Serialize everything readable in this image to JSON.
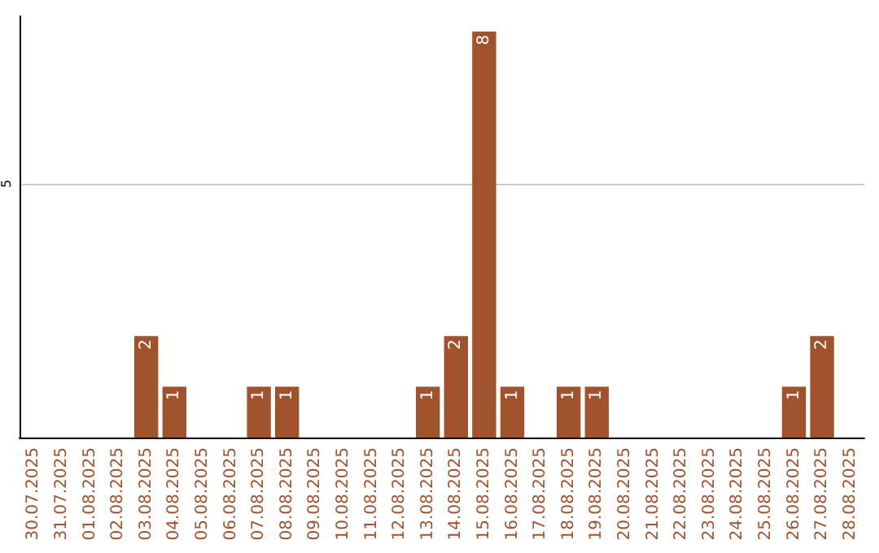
{
  "chart_data": {
    "type": "bar",
    "categories": [
      "30.07.2025",
      "31.07.2025",
      "01.08.2025",
      "02.08.2025",
      "03.08.2025",
      "04.08.2025",
      "05.08.2025",
      "06.08.2025",
      "07.08.2025",
      "08.08.2025",
      "09.08.2025",
      "10.08.2025",
      "11.08.2025",
      "12.08.2025",
      "13.08.2025",
      "14.08.2025",
      "15.08.2025",
      "16.08.2025",
      "17.08.2025",
      "18.08.2025",
      "19.08.2025",
      "20.08.2025",
      "21.08.2025",
      "22.08.2025",
      "23.08.2025",
      "24.08.2025",
      "25.08.2025",
      "26.08.2025",
      "27.08.2025",
      "28.08.2025"
    ],
    "values": [
      0,
      0,
      0,
      0,
      2,
      1,
      0,
      0,
      1,
      1,
      0,
      0,
      0,
      0,
      1,
      2,
      8,
      1,
      0,
      1,
      1,
      0,
      0,
      0,
      0,
      0,
      0,
      1,
      2,
      0
    ],
    "value_labels": [
      null,
      null,
      null,
      null,
      "2",
      "1",
      null,
      null,
      "1",
      "1",
      null,
      null,
      null,
      null,
      "1",
      "2",
      "8",
      "1",
      null,
      "1",
      "1",
      null,
      null,
      null,
      null,
      null,
      null,
      "1",
      "2",
      null
    ],
    "color": "#a0522d",
    "ylim": [
      0,
      8.3
    ],
    "yticks": [
      5
    ],
    "grid": "y"
  }
}
